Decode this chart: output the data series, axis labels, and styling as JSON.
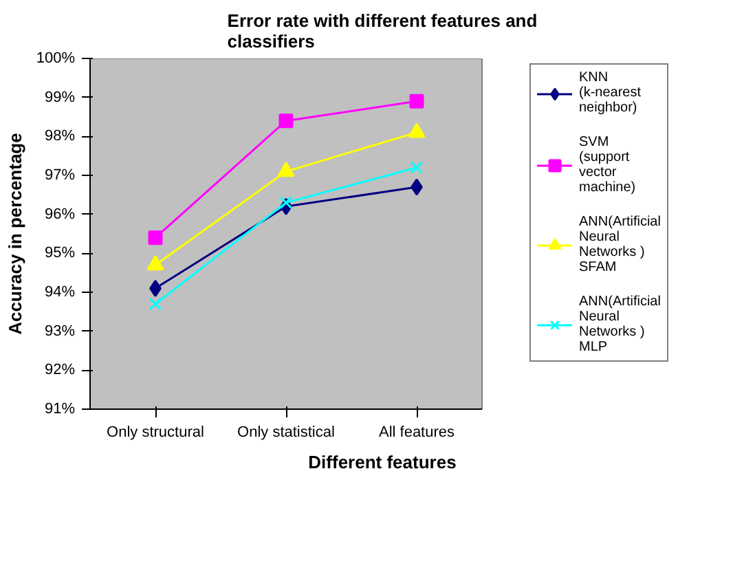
{
  "chart_data": {
    "type": "line",
    "title": "Error rate with different features and classifiers",
    "xlabel": "Different features",
    "ylabel": "Accuracy in percentage",
    "categories": [
      "Only structural",
      "Only statistical",
      "All features"
    ],
    "series": [
      {
        "name": "KNN (k-nearest neighbor)",
        "color": "#000080",
        "marker": "diamond",
        "values": [
          94.1,
          96.2,
          96.7
        ]
      },
      {
        "name": "SVM (support vector machine)",
        "color": "#ff00ff",
        "marker": "square",
        "values": [
          95.4,
          98.4,
          98.9
        ]
      },
      {
        "name": "ANN(Artificial Neural Networks ) SFAM",
        "color": "#ffff00",
        "marker": "triangle",
        "values": [
          94.7,
          97.1,
          98.1
        ]
      },
      {
        "name": "ANN(Artificial Neural Networks ) MLP",
        "color": "#00ffff",
        "marker": "cross",
        "values": [
          93.7,
          96.3,
          97.2
        ]
      }
    ],
    "ylim": [
      91,
      100
    ],
    "yticks": [
      {
        "value": 91,
        "label": "91%"
      },
      {
        "value": 92,
        "label": "92%"
      },
      {
        "value": 93,
        "label": "93%"
      },
      {
        "value": 94,
        "label": "94%"
      },
      {
        "value": 95,
        "label": "95%"
      },
      {
        "value": 96,
        "label": "96%"
      },
      {
        "value": 97,
        "label": "97%"
      },
      {
        "value": 98,
        "label": "98%"
      },
      {
        "value": 99,
        "label": "99%"
      },
      {
        "value": 100,
        "label": "100%"
      }
    ],
    "legend": "right",
    "line_style": "solid"
  }
}
